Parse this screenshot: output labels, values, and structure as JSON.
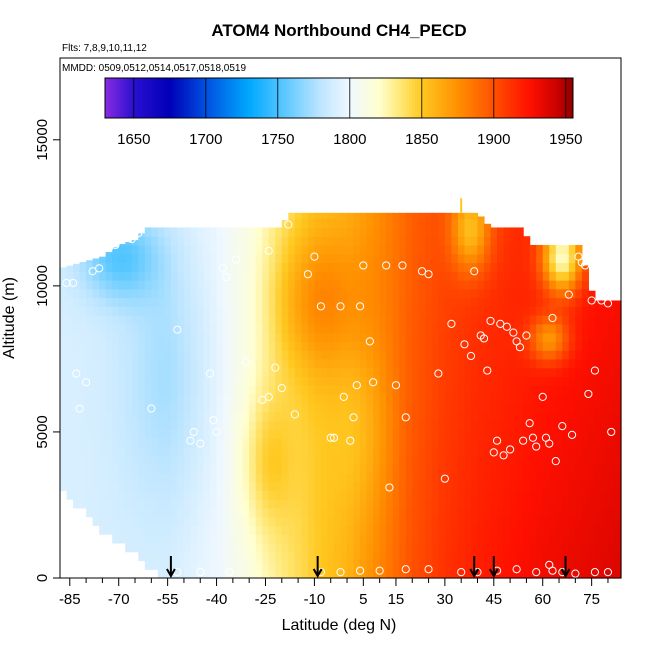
{
  "chart_data": {
    "type": "heatmap",
    "title": "ATOM4 Northbound CH4_PECD",
    "flights_note": "Flts: 7,8,9,10,11,12",
    "dates_note": "MMDD: 0509,0512,0514,0517,0518,0519",
    "xlabel": "Latitude (deg N)",
    "ylabel": "Altitude (m)",
    "xlim": [
      -88,
      84
    ],
    "ylim": [
      0,
      17800
    ],
    "x_ticks": [
      -85,
      -70,
      -55,
      -40,
      -25,
      -10,
      5,
      15,
      30,
      45,
      60,
      75
    ],
    "x_tick_labels": [
      "-85",
      "-70",
      "-55",
      "-40",
      "-25",
      "-10",
      "5",
      "15",
      "30",
      "45",
      "60",
      "75"
    ],
    "x_minor_ticks": [
      -80,
      -75,
      -65,
      -60,
      -50,
      -45,
      -35,
      -30,
      -20,
      -15,
      -5,
      0,
      10,
      20,
      25,
      35,
      40,
      50,
      55,
      65,
      70,
      80
    ],
    "y_ticks": [
      0,
      5000,
      10000,
      15000
    ],
    "y_tick_labels": [
      "0",
      "5000",
      "10000",
      "15000"
    ],
    "colorbar": {
      "min": 1630,
      "max": 1955,
      "ticks": [
        1650,
        1700,
        1750,
        1800,
        1850,
        1900,
        1950
      ],
      "tick_labels": [
        "1650",
        "1700",
        "1750",
        "1800",
        "1850",
        "1900",
        "1950"
      ],
      "color_stops": [
        {
          "value": 1630,
          "color": "#8a2be2"
        },
        {
          "value": 1650,
          "color": "#2a10d0"
        },
        {
          "value": 1675,
          "color": "#0000b8"
        },
        {
          "value": 1700,
          "color": "#0050e0"
        },
        {
          "value": 1730,
          "color": "#00a8ff"
        },
        {
          "value": 1755,
          "color": "#5cc8ff"
        },
        {
          "value": 1780,
          "color": "#bfe6ff"
        },
        {
          "value": 1800,
          "color": "#f0f8ff"
        },
        {
          "value": 1820,
          "color": "#ffffd0"
        },
        {
          "value": 1835,
          "color": "#ffe878"
        },
        {
          "value": 1850,
          "color": "#ffc820"
        },
        {
          "value": 1875,
          "color": "#ff9000"
        },
        {
          "value": 1900,
          "color": "#ff5000"
        },
        {
          "value": 1925,
          "color": "#ff1000"
        },
        {
          "value": 1945,
          "color": "#c80000"
        },
        {
          "value": 1955,
          "color": "#8b0000"
        }
      ]
    },
    "field_model": {
      "cell_lat_deg": 2,
      "cell_alt_m": 300,
      "envelope": [
        {
          "lat": -88,
          "top": 10600
        },
        {
          "lat": -75,
          "top": 11000
        },
        {
          "lat": -70,
          "top": 11400
        },
        {
          "lat": -64,
          "top": 11600
        },
        {
          "lat": -62,
          "top": 12000
        },
        {
          "lat": -20,
          "top": 12000
        },
        {
          "lat": -18,
          "top": 12500
        },
        {
          "lat": 40,
          "top": 12500
        },
        {
          "lat": 44,
          "top": 12000
        },
        {
          "lat": 54,
          "top": 12000
        },
        {
          "lat": 56,
          "top": 11400
        },
        {
          "lat": 72,
          "top": 11400
        },
        {
          "lat": 74,
          "top": 10000
        },
        {
          "lat": 77,
          "top": 9500
        },
        {
          "lat": 84,
          "top": 9500
        }
      ],
      "bottom_profile": [
        {
          "lat": -88,
          "bottom": 3300
        },
        {
          "lat": -75,
          "bottom": 1700
        },
        {
          "lat": -70,
          "bottom": 1300
        },
        {
          "lat": -64,
          "bottom": 900
        },
        {
          "lat": -60,
          "bottom": 400
        },
        {
          "lat": -55,
          "bottom": 0
        },
        {
          "lat": 84,
          "bottom": 0
        }
      ],
      "base_by_lat": [
        {
          "lat": -88,
          "value": 1790
        },
        {
          "lat": -70,
          "value": 1790
        },
        {
          "lat": -55,
          "value": 1792
        },
        {
          "lat": -40,
          "value": 1800
        },
        {
          "lat": -30,
          "value": 1812
        },
        {
          "lat": -20,
          "value": 1832
        },
        {
          "lat": -10,
          "value": 1848
        },
        {
          "lat": 0,
          "value": 1860
        },
        {
          "lat": 10,
          "value": 1880
        },
        {
          "lat": 20,
          "value": 1900
        },
        {
          "lat": 30,
          "value": 1912
        },
        {
          "lat": 40,
          "value": 1920
        },
        {
          "lat": 60,
          "value": 1930
        },
        {
          "lat": 84,
          "value": 1938
        }
      ],
      "alt_decay_by_lat": [
        {
          "lat": -88,
          "value": 0
        },
        {
          "lat": -10,
          "value": 0
        },
        {
          "lat": 10,
          "value": 0.002
        },
        {
          "lat": 30,
          "value": 0.004
        },
        {
          "lat": 50,
          "value": 0.006
        },
        {
          "lat": 84,
          "value": 0.007
        }
      ],
      "features": [
        {
          "lat": -55,
          "alt": 7000,
          "sigma_lat": 14,
          "sigma_alt": 5000,
          "delta": -18
        },
        {
          "lat": -10,
          "alt": 9500,
          "sigma_lat": 14,
          "sigma_alt": 2500,
          "delta": 30
        },
        {
          "lat": -25,
          "alt": 4000,
          "sigma_lat": 8,
          "sigma_alt": 2500,
          "delta": 25
        },
        {
          "lat": 5,
          "alt": 5000,
          "sigma_lat": 9,
          "sigma_alt": 3000,
          "delta": -12
        },
        {
          "lat": -70,
          "alt": 11000,
          "sigma_lat": 12,
          "sigma_alt": 1500,
          "delta": -35
        },
        {
          "lat": 38,
          "alt": 12000,
          "sigma_lat": 6,
          "sigma_alt": 1500,
          "delta": -55
        },
        {
          "lat": 66,
          "alt": 11000,
          "sigma_lat": 6,
          "sigma_alt": 1200,
          "delta": -100
        },
        {
          "lat": 62,
          "alt": 8200,
          "sigma_lat": 6,
          "sigma_alt": 800,
          "delta": -50
        }
      ]
    },
    "observation_points": [
      {
        "lat": -86,
        "alt": 10100
      },
      {
        "lat": -84,
        "alt": 10100
      },
      {
        "lat": -78,
        "alt": 10500
      },
      {
        "lat": -76,
        "alt": 10600
      },
      {
        "lat": -73,
        "alt": 11300
      },
      {
        "lat": -71,
        "alt": 11400
      },
      {
        "lat": -66,
        "alt": 11600
      },
      {
        "lat": -64,
        "alt": 11800
      },
      {
        "lat": -83,
        "alt": 7000
      },
      {
        "lat": -80,
        "alt": 6700
      },
      {
        "lat": -82,
        "alt": 5800
      },
      {
        "lat": -60,
        "alt": 5800
      },
      {
        "lat": -52,
        "alt": 8500
      },
      {
        "lat": -48,
        "alt": 4700
      },
      {
        "lat": -47,
        "alt": 5000
      },
      {
        "lat": -45,
        "alt": 4600
      },
      {
        "lat": -42,
        "alt": 7000
      },
      {
        "lat": -41,
        "alt": 5400
      },
      {
        "lat": -40,
        "alt": 5000
      },
      {
        "lat": -38,
        "alt": 10600
      },
      {
        "lat": -37,
        "alt": 10300
      },
      {
        "lat": -34,
        "alt": 10900
      },
      {
        "lat": -31,
        "alt": 7400
      },
      {
        "lat": -26,
        "alt": 6100
      },
      {
        "lat": -24,
        "alt": 11200
      },
      {
        "lat": -24,
        "alt": 6200
      },
      {
        "lat": -22,
        "alt": 7200
      },
      {
        "lat": -20,
        "alt": 6500
      },
      {
        "lat": -18,
        "alt": 12100
      },
      {
        "lat": -16,
        "alt": 5600
      },
      {
        "lat": -12,
        "alt": 10400
      },
      {
        "lat": -10,
        "alt": 11000
      },
      {
        "lat": -8,
        "alt": 9300
      },
      {
        "lat": -5,
        "alt": 4800
      },
      {
        "lat": -4,
        "alt": 4800
      },
      {
        "lat": -2,
        "alt": 9300
      },
      {
        "lat": -1,
        "alt": 6200
      },
      {
        "lat": 1,
        "alt": 4700
      },
      {
        "lat": 2,
        "alt": 5500
      },
      {
        "lat": 3,
        "alt": 6600
      },
      {
        "lat": 4,
        "alt": 9300
      },
      {
        "lat": 5,
        "alt": 10700
      },
      {
        "lat": 7,
        "alt": 8100
      },
      {
        "lat": 8,
        "alt": 6700
      },
      {
        "lat": 12,
        "alt": 10700
      },
      {
        "lat": 13,
        "alt": 3100
      },
      {
        "lat": 15,
        "alt": 6600
      },
      {
        "lat": 17,
        "alt": 10700
      },
      {
        "lat": 18,
        "alt": 5500
      },
      {
        "lat": 23,
        "alt": 10500
      },
      {
        "lat": 25,
        "alt": 10400
      },
      {
        "lat": 28,
        "alt": 7000
      },
      {
        "lat": 30,
        "alt": 3400
      },
      {
        "lat": 32,
        "alt": 8700
      },
      {
        "lat": 36,
        "alt": 8000
      },
      {
        "lat": 38,
        "alt": 7600
      },
      {
        "lat": 39,
        "alt": 10500
      },
      {
        "lat": 41,
        "alt": 8300
      },
      {
        "lat": 42,
        "alt": 8200
      },
      {
        "lat": 43,
        "alt": 7100
      },
      {
        "lat": 44,
        "alt": 8800
      },
      {
        "lat": 45,
        "alt": 4300
      },
      {
        "lat": 46,
        "alt": 4700
      },
      {
        "lat": 47,
        "alt": 8700
      },
      {
        "lat": 48,
        "alt": 4200
      },
      {
        "lat": 49,
        "alt": 8600
      },
      {
        "lat": 50,
        "alt": 4400
      },
      {
        "lat": 51,
        "alt": 8400
      },
      {
        "lat": 52,
        "alt": 8100
      },
      {
        "lat": 53,
        "alt": 7900
      },
      {
        "lat": 54,
        "alt": 4700
      },
      {
        "lat": 55,
        "alt": 8300
      },
      {
        "lat": 56,
        "alt": 5300
      },
      {
        "lat": 57,
        "alt": 4800
      },
      {
        "lat": 58,
        "alt": 4500
      },
      {
        "lat": 60,
        "alt": 6200
      },
      {
        "lat": 61,
        "alt": 4800
      },
      {
        "lat": 62,
        "alt": 4600
      },
      {
        "lat": 63,
        "alt": 8900
      },
      {
        "lat": 64,
        "alt": 4000
      },
      {
        "lat": 66,
        "alt": 5200
      },
      {
        "lat": 68,
        "alt": 9700
      },
      {
        "lat": 69,
        "alt": 4900
      },
      {
        "lat": 71,
        "alt": 11000
      },
      {
        "lat": 72,
        "alt": 10800
      },
      {
        "lat": 73,
        "alt": 10700
      },
      {
        "lat": 74,
        "alt": 6300
      },
      {
        "lat": 75,
        "alt": 9500
      },
      {
        "lat": 76,
        "alt": 7100
      },
      {
        "lat": 78,
        "alt": 9500
      },
      {
        "lat": 80,
        "alt": 9400
      },
      {
        "lat": 81,
        "alt": 5000
      },
      {
        "lat": -52,
        "alt": 200
      },
      {
        "lat": -45,
        "alt": 200
      },
      {
        "lat": -36,
        "alt": 200
      },
      {
        "lat": -8,
        "alt": 200
      },
      {
        "lat": -2,
        "alt": 200
      },
      {
        "lat": 4,
        "alt": 250
      },
      {
        "lat": 10,
        "alt": 250
      },
      {
        "lat": 18,
        "alt": 300
      },
      {
        "lat": 25,
        "alt": 300
      },
      {
        "lat": 35,
        "alt": 200
      },
      {
        "lat": 40,
        "alt": 200
      },
      {
        "lat": 46,
        "alt": 250
      },
      {
        "lat": 52,
        "alt": 300
      },
      {
        "lat": 58,
        "alt": 200
      },
      {
        "lat": 62,
        "alt": 450
      },
      {
        "lat": 63,
        "alt": 250
      },
      {
        "lat": 66,
        "alt": 200
      },
      {
        "lat": 70,
        "alt": 150
      },
      {
        "lat": 76,
        "alt": 200
      },
      {
        "lat": 80,
        "alt": 200
      }
    ],
    "arrow_latitudes": [
      -54,
      -9,
      39,
      45,
      67
    ],
    "tropopause_mark_lat": 35
  }
}
